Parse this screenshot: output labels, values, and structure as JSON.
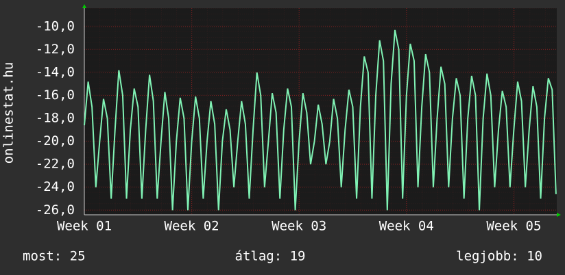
{
  "chart_data": {
    "type": "line",
    "ylabel": "onlinestat.hu",
    "color": "#80f2b4",
    "grid": true,
    "x": [
      0,
      0.25,
      0.5,
      0.75,
      1,
      1.25,
      1.5,
      1.75,
      2,
      2.25,
      2.5,
      2.75,
      3,
      3.25,
      3.5,
      3.75,
      4,
      4.25,
      4.5,
      4.75,
      5,
      5.25,
      5.5,
      5.75,
      6,
      6.25,
      6.5,
      6.75,
      7,
      7.25,
      7.5,
      7.75,
      8,
      8.25,
      8.5,
      8.75,
      9,
      9.25,
      9.5,
      9.75,
      10,
      10.25,
      10.5,
      10.75,
      11,
      11.25,
      11.5,
      11.75,
      12,
      12.25,
      12.5,
      12.75,
      13,
      13.25,
      13.5,
      13.75,
      14,
      14.25,
      14.5,
      14.75,
      15,
      15.25,
      15.5,
      15.75,
      16,
      16.25,
      16.5,
      16.75,
      17,
      17.25,
      17.5,
      17.75,
      18,
      18.25,
      18.5,
      18.75,
      19,
      19.25,
      19.5,
      19.75,
      20,
      20.25,
      20.5,
      20.75,
      21,
      21.25,
      21.5,
      21.75,
      22,
      22.25,
      22.5,
      22.75,
      23,
      23.25,
      23.5,
      23.75,
      24,
      24.25,
      24.5,
      24.75,
      25,
      25.25,
      25.5,
      25.75,
      26,
      26.25,
      26.5,
      26.75,
      27,
      27.25,
      27.5,
      27.75,
      28,
      28.25,
      28.5,
      28.75,
      29,
      29.25,
      29.5,
      29.75,
      30,
      30.25,
      30.5,
      30.75
    ],
    "values": [
      -18.6,
      -14.8,
      -17,
      -24,
      -20,
      -16.3,
      -18,
      -25,
      -19,
      -13.8,
      -16,
      -25,
      -19,
      -15.4,
      -17,
      -25,
      -19,
      -14.2,
      -16.5,
      -25,
      -20,
      -15.7,
      -18,
      -26,
      -20,
      -16.2,
      -18,
      -26,
      -20,
      -16.1,
      -18,
      -25,
      -20,
      -16.5,
      -18.5,
      -26,
      -20,
      -17.2,
      -19,
      -24,
      -20,
      -16.5,
      -18.5,
      -25,
      -19,
      -14,
      -16,
      -24,
      -20,
      -15.8,
      -17.5,
      -25,
      -19,
      -15.4,
      -17,
      -26,
      -20,
      -15.8,
      -17.5,
      -22,
      -20,
      -16.8,
      -18.5,
      -22,
      -20,
      -16.3,
      -18,
      -24,
      -19,
      -15.5,
      -17,
      -25,
      -17,
      -12.6,
      -14,
      -25,
      -16,
      -11.2,
      -13,
      -26,
      -15,
      -10.3,
      -12,
      -25,
      -16,
      -11.5,
      -13,
      -24,
      -17,
      -12.4,
      -14,
      -24,
      -18,
      -13.5,
      -15,
      -24,
      -18,
      -14.5,
      -16,
      -25,
      -18,
      -14.3,
      -16,
      -26,
      -18,
      -14.1,
      -16,
      -24,
      -19,
      -15.6,
      -17,
      -24,
      -19,
      -14.8,
      -16.5,
      -24,
      -19,
      -15.2,
      -17,
      -25,
      -18,
      -14.5,
      -15.5,
      -24.6
    ],
    "xlim": [
      0,
      30.8
    ],
    "xticks": [
      {
        "value": 0,
        "label": "Week 01"
      },
      {
        "value": 7,
        "label": "Week 02"
      },
      {
        "value": 14,
        "label": "Week 03"
      },
      {
        "value": 21,
        "label": "Week 04"
      },
      {
        "value": 28,
        "label": "Week 05"
      }
    ],
    "ylim": [
      -26.4,
      -8.4
    ],
    "yticks": [
      {
        "value": -10,
        "label": "-10,0"
      },
      {
        "value": -12,
        "label": "-12,0"
      },
      {
        "value": -14,
        "label": "-14,0"
      },
      {
        "value": -16,
        "label": "-16,0"
      },
      {
        "value": -18,
        "label": "-18,0"
      },
      {
        "value": -20,
        "label": "-20,0"
      },
      {
        "value": -22,
        "label": "-22,0"
      },
      {
        "value": -24,
        "label": "-24,0"
      },
      {
        "value": -26,
        "label": "-26,0"
      }
    ],
    "annotations": [
      "most: 25",
      "átlag: 19",
      "legjobb: 10"
    ]
  }
}
